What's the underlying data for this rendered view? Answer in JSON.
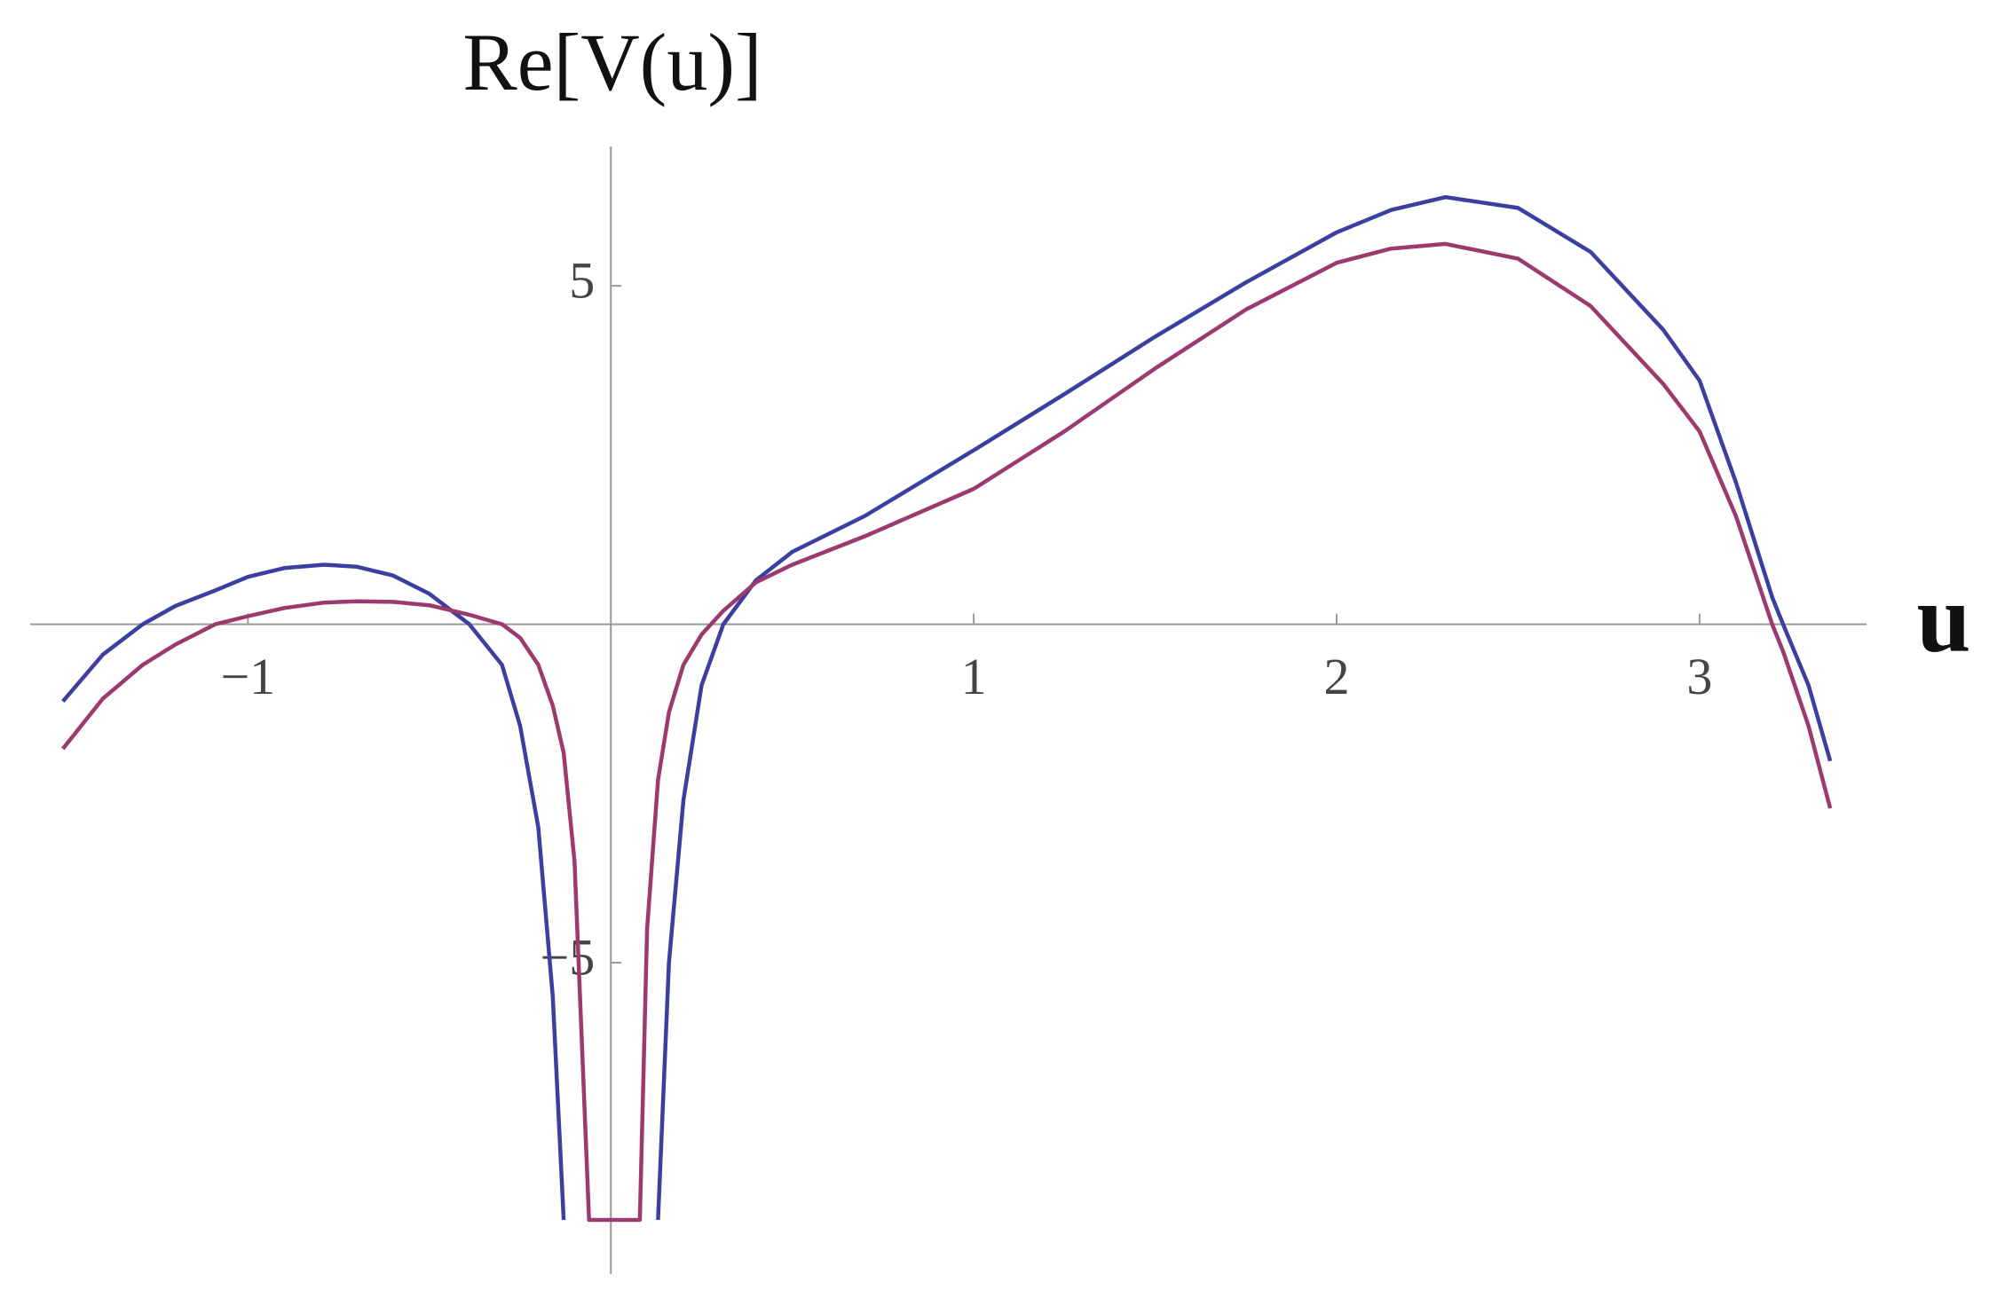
{
  "chart_data": {
    "type": "line",
    "x_label": "u",
    "y_label": "Re[V(u)]",
    "x": [
      -1.51,
      -1.4,
      -1.29,
      -1.2,
      -1.09,
      -1.0,
      -0.9,
      -0.79,
      -0.7,
      -0.6,
      -0.5,
      -0.39,
      -0.3,
      -0.25,
      -0.2,
      -0.16,
      -0.13,
      -0.1,
      -0.06,
      0.08,
      0.1,
      0.13,
      0.16,
      0.2,
      0.25,
      0.31,
      0.4,
      0.5,
      0.7,
      1.0,
      1.25,
      1.5,
      1.75,
      2.0,
      2.15,
      2.3,
      2.5,
      2.7,
      2.9,
      3.0,
      3.1,
      3.2,
      3.23,
      3.3,
      3.36
    ],
    "series": [
      {
        "color": "#3b3fa0",
        "values": [
          -1.14,
          -0.45,
          0,
          0.27,
          0.5,
          0.7,
          0.83,
          0.88,
          0.85,
          0.72,
          0.45,
          0,
          -0.6,
          -1.5,
          -3,
          -5.5,
          -8.8,
          null,
          null,
          null,
          null,
          -8.8,
          -5.0,
          -2.6,
          -0.9,
          0,
          0.65,
          1.07,
          1.6,
          2.57,
          3.4,
          4.25,
          5.05,
          5.79,
          6.12,
          6.31,
          6.15,
          5.5,
          4.35,
          3.6,
          2.1,
          0.4,
          0,
          -0.9,
          -2.02
        ]
      },
      {
        "color": "#9c3a70",
        "values": [
          -1.84,
          -1.1,
          -0.6,
          -0.3,
          0,
          0.12,
          0.24,
          0.32,
          0.34,
          0.33,
          0.28,
          0.14,
          0,
          -0.2,
          -0.6,
          -1.2,
          -1.9,
          -3.5,
          -8.8,
          -8.8,
          -4.5,
          -2.3,
          -1.3,
          -0.6,
          -0.15,
          0.2,
          0.62,
          0.88,
          1.3,
          2.0,
          2.85,
          3.78,
          4.65,
          5.34,
          5.55,
          5.62,
          5.4,
          4.7,
          3.55,
          2.85,
          1.6,
          0,
          -0.4,
          -1.5,
          -2.72
        ]
      }
    ],
    "xlim": [
      -1.6,
      3.46
    ],
    "ylim": [
      -9.6,
      7.06
    ],
    "xticks": [
      {
        "value": -1,
        "label": "−1"
      },
      1,
      2,
      3
    ],
    "yticks": [
      {
        "value": -5,
        "label": "−5"
      },
      5
    ]
  }
}
